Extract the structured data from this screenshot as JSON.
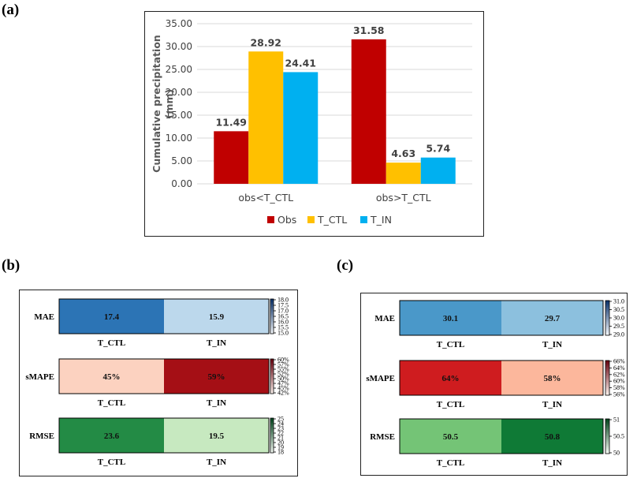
{
  "panel_labels": {
    "a": "(a)",
    "b": "(b)",
    "c": "(c)"
  },
  "chart_data": [
    {
      "type": "bar",
      "categories": [
        "obs<T_CTL",
        "obs>T_CTL"
      ],
      "series": [
        {
          "name": "Obs",
          "values": [
            11.49,
            31.58
          ],
          "labels": [
            "11.49",
            "31.58"
          ],
          "color": "#c00000"
        },
        {
          "name": "T_CTL",
          "values": [
            28.92,
            4.63
          ],
          "labels": [
            "28.92",
            "4.63"
          ],
          "color": "#ffc000"
        },
        {
          "name": "T_IN",
          "values": [
            24.41,
            5.74
          ],
          "labels": [
            "24.41",
            "5.74"
          ],
          "color": "#00b0f0"
        }
      ],
      "ylabel": "Cumulative precipitation (mm)",
      "ylim": [
        0,
        35
      ],
      "yticks": [
        "0.00",
        "5.00",
        "10.00",
        "15.00",
        "20.00",
        "25.00",
        "30.00",
        "35.00"
      ],
      "grid": true,
      "legend": "bottom"
    },
    {
      "type": "heatmap",
      "rows": [
        {
          "metric": "MAE",
          "categories": [
            "T_CTL",
            "T_IN"
          ],
          "values": [
            17.4,
            15.9
          ],
          "labels": [
            "17.4",
            "15.9"
          ],
          "colors": [
            "#2c74b5",
            "#bcd8ec"
          ],
          "vmin": 15.0,
          "vmax": 18.0,
          "cbar_ticks": [
            "18.0",
            "17.5",
            "17.0",
            "16.5",
            "16.0",
            "15.5",
            "15.0"
          ],
          "cbar_colors": [
            "#08306b",
            "#f7fbff"
          ]
        },
        {
          "metric": "sMAPE",
          "categories": [
            "T_CTL",
            "T_IN"
          ],
          "values": [
            45,
            59
          ],
          "labels": [
            "45%",
            "59%"
          ],
          "colors": [
            "#fcd2c0",
            "#a50f15"
          ],
          "vmin": 42,
          "vmax": 60,
          "cbar_ticks": [
            "60%",
            "57%",
            "55%",
            "52%",
            "50%",
            "47%",
            "45%",
            "42%"
          ],
          "cbar_colors": [
            "#67000d",
            "#fff5f0"
          ]
        },
        {
          "metric": "RMSE",
          "categories": [
            "T_CTL",
            "T_IN"
          ],
          "values": [
            23.6,
            19.5
          ],
          "labels": [
            "23.6",
            "19.5"
          ],
          "colors": [
            "#238b45",
            "#c7e9c0"
          ],
          "vmin": 18,
          "vmax": 25,
          "cbar_ticks": [
            "25",
            "24",
            "23",
            "22",
            "21",
            "20",
            "19",
            "18"
          ],
          "cbar_colors": [
            "#00441b",
            "#f7fcf5"
          ]
        }
      ]
    },
    {
      "type": "heatmap",
      "rows": [
        {
          "metric": "MAE",
          "categories": [
            "T_CTL",
            "T_IN"
          ],
          "values": [
            30.1,
            29.7
          ],
          "labels": [
            "30.1",
            "29.7"
          ],
          "colors": [
            "#4a98c9",
            "#8cc0de"
          ],
          "vmin": 29.0,
          "vmax": 31.0,
          "cbar_ticks": [
            "31.0",
            "30.5",
            "30.0",
            "29.5",
            "29.0"
          ],
          "cbar_colors": [
            "#08306b",
            "#f7fbff"
          ]
        },
        {
          "metric": "sMAPE",
          "categories": [
            "T_CTL",
            "T_IN"
          ],
          "values": [
            64,
            58
          ],
          "labels": [
            "64%",
            "58%"
          ],
          "colors": [
            "#cf1c1f",
            "#fcb79c"
          ],
          "vmin": 56,
          "vmax": 66,
          "cbar_ticks": [
            "66%",
            "64%",
            "62%",
            "60%",
            "58%",
            "56%"
          ],
          "cbar_colors": [
            "#67000d",
            "#fff5f0"
          ]
        },
        {
          "metric": "RMSE",
          "categories": [
            "T_CTL",
            "T_IN"
          ],
          "values": [
            50.5,
            50.8
          ],
          "labels": [
            "50.5",
            "50.8"
          ],
          "colors": [
            "#74c476",
            "#0f7a36"
          ],
          "vmin": 50,
          "vmax": 51,
          "cbar_ticks": [
            "51",
            "50.5",
            "50"
          ],
          "cbar_colors": [
            "#00441b",
            "#f7fcf5"
          ]
        }
      ]
    }
  ]
}
